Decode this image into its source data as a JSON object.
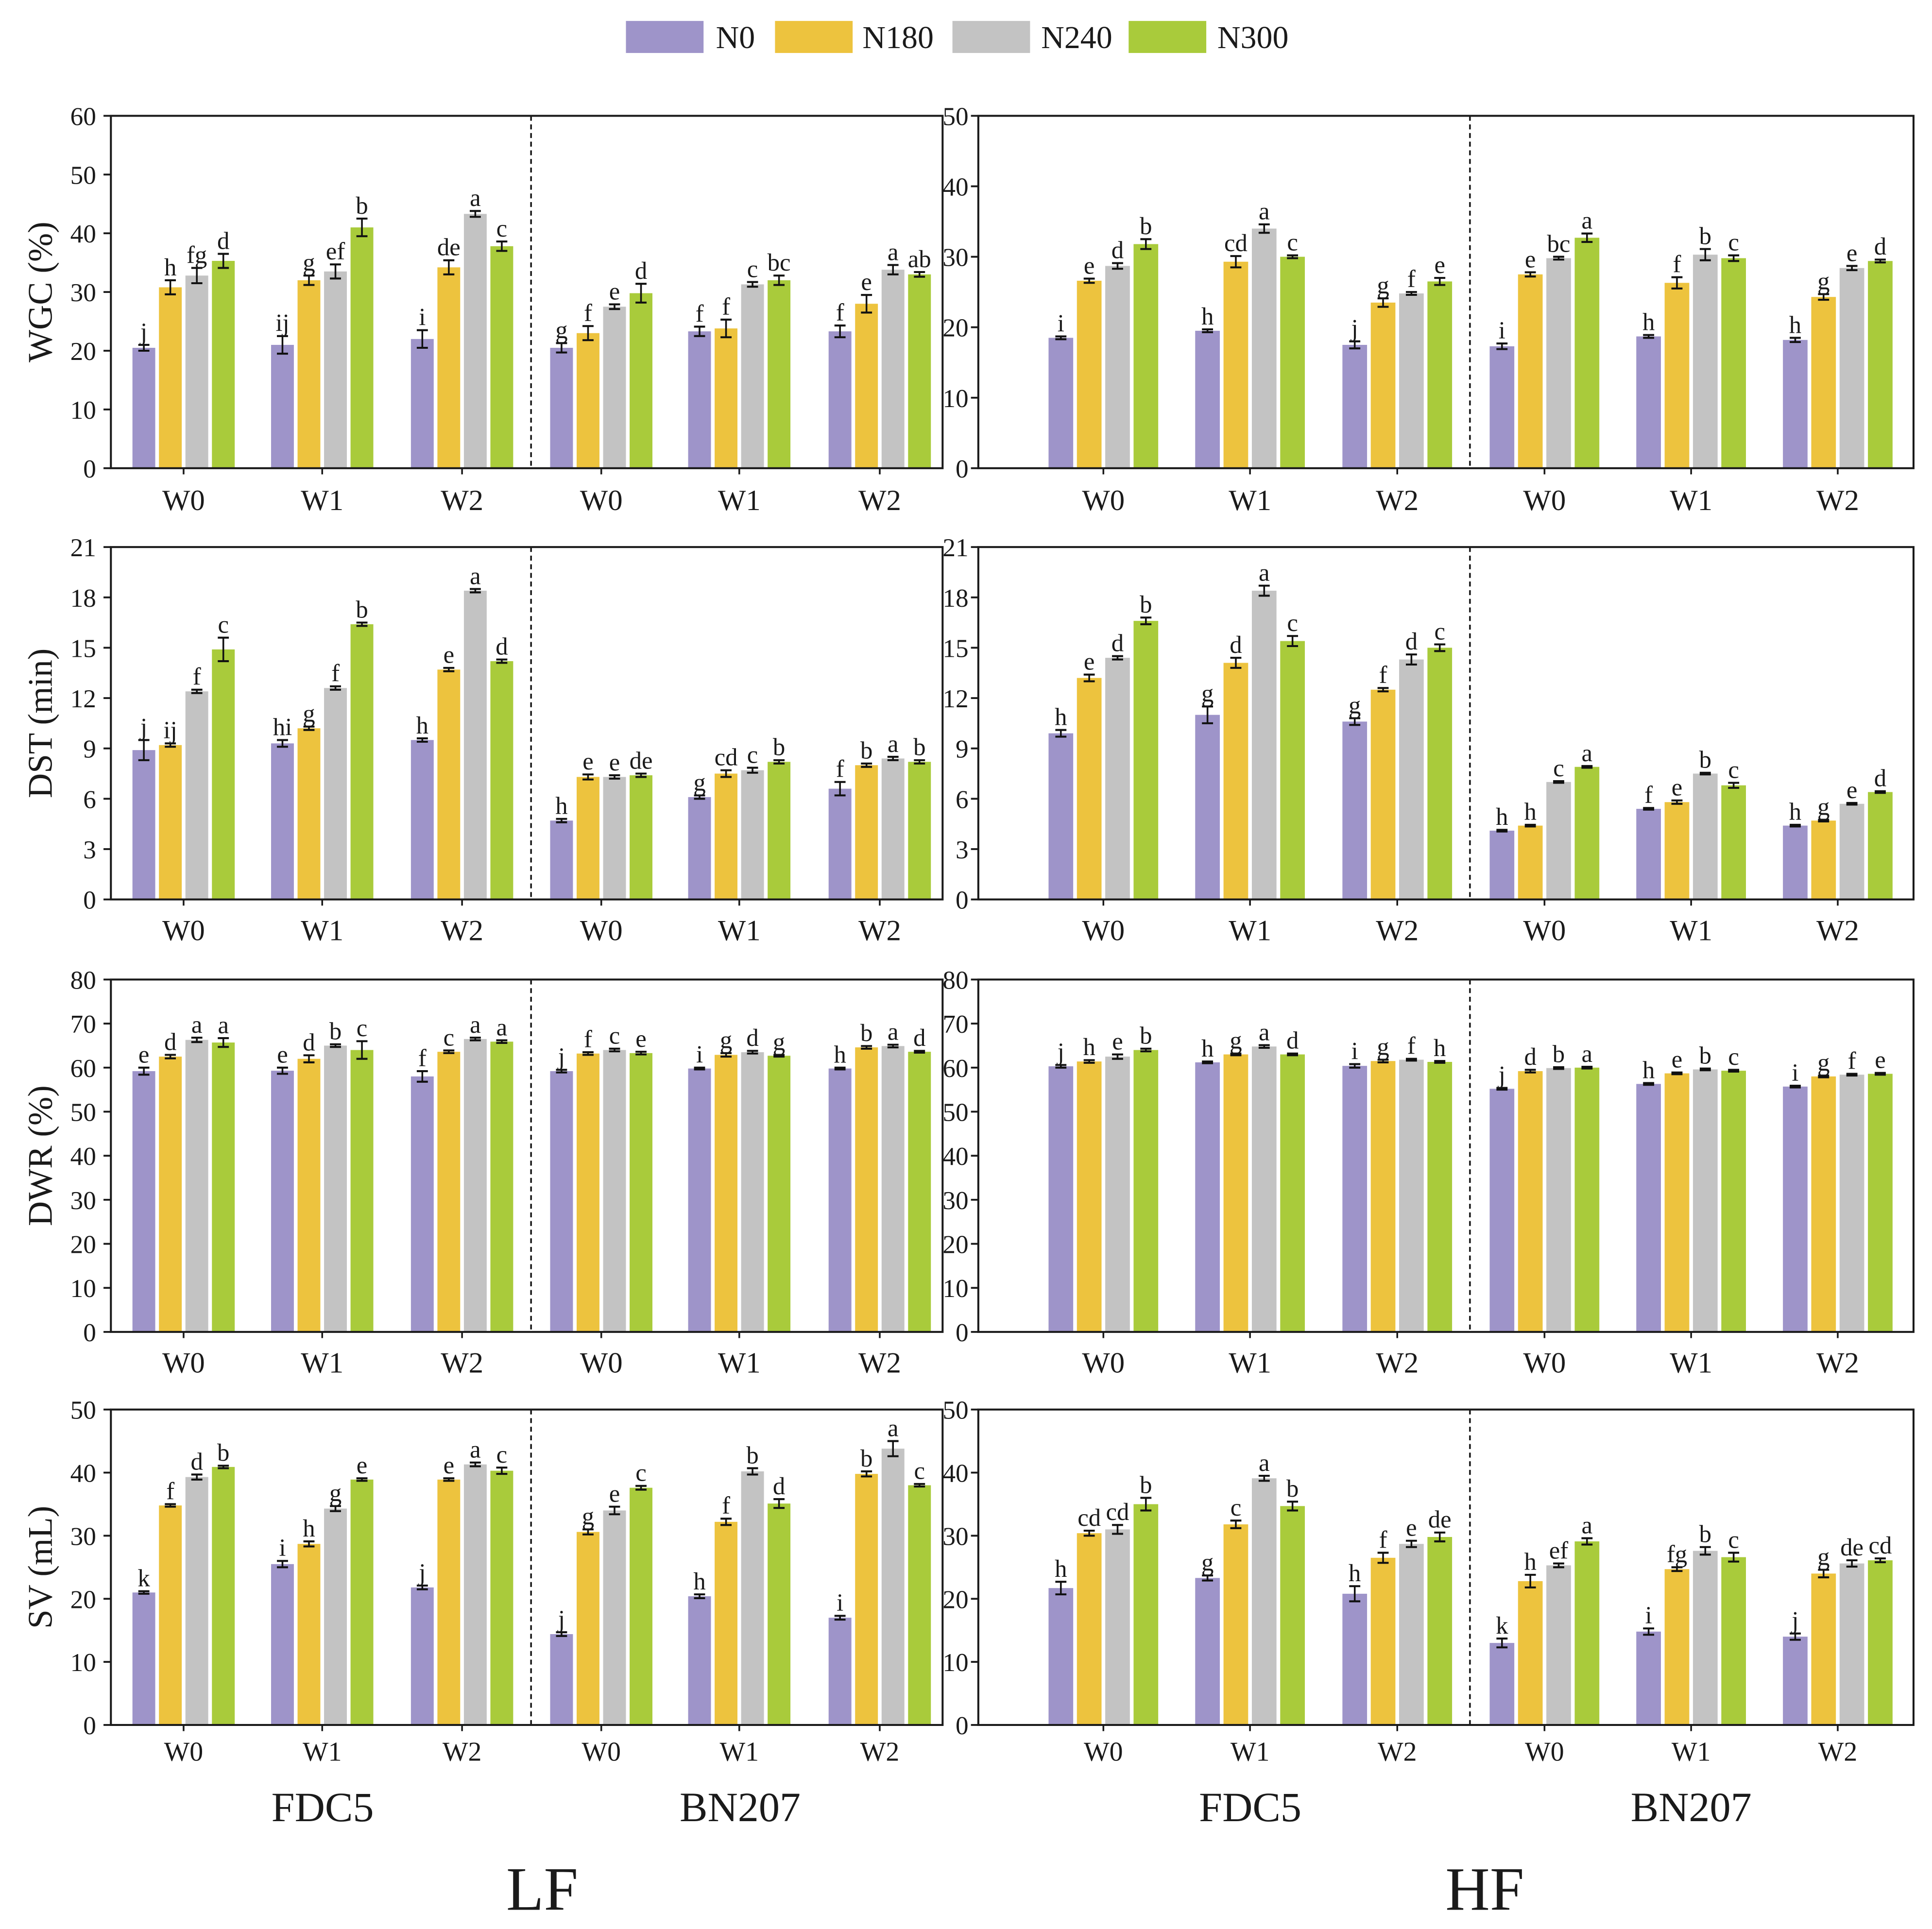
{
  "legend": [
    {
      "label": "N0",
      "color": "#9e94c9"
    },
    {
      "label": "N180",
      "color": "#edc33e"
    },
    {
      "label": "N240",
      "color": "#c3c3c3"
    },
    {
      "label": "N300",
      "color": "#a9cb3b"
    }
  ],
  "cultivars": [
    "FDC5",
    "BN207"
  ],
  "conditions": [
    "LF",
    "HF"
  ],
  "chart_data": [
    {
      "type": "bar",
      "ylabel": "WGC (%)",
      "ylim": [
        0,
        60
      ],
      "yticks": [
        0,
        10,
        20,
        30,
        40,
        50,
        60
      ],
      "categories": [
        "W0",
        "W1",
        "W2",
        "W0",
        "W1",
        "W2"
      ],
      "series": [
        {
          "name": "N0",
          "values": [
            20.5,
            21.0,
            22.0,
            20.5,
            23.3,
            23.3
          ],
          "errors": [
            0.5,
            1.5,
            1.5,
            0.8,
            0.8,
            1.0
          ],
          "letters": [
            "j",
            "ij",
            "i",
            "g",
            "f",
            "f"
          ]
        },
        {
          "name": "N180",
          "values": [
            30.8,
            32.0,
            34.2,
            23.0,
            23.8,
            28.0
          ],
          "errors": [
            1.2,
            0.8,
            1.2,
            1.2,
            1.5,
            1.5
          ],
          "letters": [
            "h",
            "g",
            "de",
            "f",
            "f",
            "e"
          ]
        },
        {
          "name": "N240",
          "values": [
            32.8,
            33.5,
            43.3,
            27.5,
            31.3,
            33.8
          ],
          "errors": [
            1.3,
            1.2,
            0.5,
            0.4,
            0.4,
            0.8
          ],
          "letters": [
            "fg",
            "ef",
            "a",
            "e",
            "c",
            "a"
          ]
        },
        {
          "name": "N300",
          "values": [
            35.3,
            41.0,
            37.8,
            29.8,
            32.0,
            33.0
          ],
          "errors": [
            1.2,
            1.5,
            0.8,
            1.6,
            0.8,
            0.4
          ],
          "letters": [
            "d",
            "b",
            "c",
            "d",
            "bc",
            "ab"
          ]
        }
      ]
    },
    {
      "type": "bar",
      "ylabel": "",
      "ylim": [
        0,
        50
      ],
      "yticks": [
        0,
        10,
        20,
        30,
        40,
        50
      ],
      "categories": [
        "W0",
        "W1",
        "W2",
        "W0",
        "W1",
        "W2"
      ],
      "series": [
        {
          "name": "N0",
          "values": [
            18.5,
            19.5,
            17.5,
            17.3,
            18.7,
            18.2
          ],
          "errors": [
            0.2,
            0.2,
            0.5,
            0.4,
            0.2,
            0.3
          ],
          "letters": [
            "i",
            "h",
            "j",
            "i",
            "h",
            "h"
          ]
        },
        {
          "name": "N180",
          "values": [
            26.6,
            29.3,
            23.5,
            27.5,
            26.3,
            24.3
          ],
          "errors": [
            0.3,
            0.8,
            0.6,
            0.3,
            0.8,
            0.4
          ],
          "letters": [
            "e",
            "cd",
            "g",
            "e",
            "f",
            "g"
          ]
        },
        {
          "name": "N240",
          "values": [
            28.7,
            34.0,
            24.8,
            29.8,
            30.3,
            28.4
          ],
          "errors": [
            0.4,
            0.6,
            0.2,
            0.2,
            0.8,
            0.3
          ],
          "letters": [
            "d",
            "a",
            "f",
            "bc",
            "b",
            "e"
          ]
        },
        {
          "name": "N300",
          "values": [
            31.8,
            30.0,
            26.5,
            32.7,
            29.8,
            29.4
          ],
          "errors": [
            0.7,
            0.2,
            0.5,
            0.6,
            0.4,
            0.2
          ],
          "letters": [
            "b",
            "c",
            "e",
            "a",
            "c",
            "d"
          ]
        }
      ]
    },
    {
      "type": "bar",
      "ylabel": "DST (min)",
      "ylim": [
        0,
        21
      ],
      "yticks": [
        0,
        3,
        6,
        9,
        12,
        15,
        18,
        21
      ],
      "categories": [
        "W0",
        "W1",
        "W2",
        "W0",
        "W1",
        "W2"
      ],
      "series": [
        {
          "name": "N0",
          "values": [
            8.9,
            9.3,
            9.5,
            4.7,
            6.1,
            6.6
          ],
          "errors": [
            0.6,
            0.2,
            0.1,
            0.1,
            0.1,
            0.4
          ],
          "letters": [
            "j",
            "hi",
            "h",
            "h",
            "g",
            "f"
          ]
        },
        {
          "name": "N180",
          "values": [
            9.2,
            10.2,
            13.7,
            7.3,
            7.5,
            8.0
          ],
          "errors": [
            0.1,
            0.1,
            0.1,
            0.15,
            0.2,
            0.1
          ],
          "letters": [
            "ij",
            "g",
            "e",
            "e",
            "cd",
            "b"
          ]
        },
        {
          "name": "N240",
          "values": [
            12.4,
            12.6,
            18.4,
            7.3,
            7.7,
            8.4
          ],
          "errors": [
            0.1,
            0.1,
            0.1,
            0.1,
            0.15,
            0.1
          ],
          "letters": [
            "f",
            "f",
            "a",
            "e",
            "c",
            "a"
          ]
        },
        {
          "name": "N300",
          "values": [
            14.9,
            16.4,
            14.2,
            7.4,
            8.2,
            8.2
          ],
          "errors": [
            0.7,
            0.1,
            0.1,
            0.1,
            0.1,
            0.1
          ],
          "letters": [
            "c",
            "b",
            "d",
            "de",
            "b",
            "b"
          ]
        }
      ]
    },
    {
      "type": "bar",
      "ylabel": "",
      "ylim": [
        0,
        21
      ],
      "yticks": [
        0,
        3,
        6,
        9,
        12,
        15,
        18,
        21
      ],
      "categories": [
        "W0",
        "W1",
        "W2",
        "W0",
        "W1",
        "W2"
      ],
      "series": [
        {
          "name": "N0",
          "values": [
            9.9,
            11.0,
            10.6,
            4.1,
            5.4,
            4.4
          ],
          "errors": [
            0.2,
            0.5,
            0.2,
            0.05,
            0.05,
            0.05
          ],
          "letters": [
            "h",
            "g",
            "g",
            "h",
            "f",
            "h"
          ]
        },
        {
          "name": "N180",
          "values": [
            13.2,
            14.1,
            12.5,
            4.4,
            5.8,
            4.7
          ],
          "errors": [
            0.2,
            0.3,
            0.1,
            0.05,
            0.1,
            0.05
          ],
          "letters": [
            "e",
            "d",
            "f",
            "h",
            "e",
            "g"
          ]
        },
        {
          "name": "N240",
          "values": [
            14.4,
            18.4,
            14.3,
            7.0,
            7.5,
            5.7
          ],
          "errors": [
            0.1,
            0.3,
            0.3,
            0.05,
            0.05,
            0.05
          ],
          "letters": [
            "d",
            "a",
            "d",
            "c",
            "b",
            "e"
          ]
        },
        {
          "name": "N300",
          "values": [
            16.6,
            15.4,
            15.0,
            7.9,
            6.8,
            6.4
          ],
          "errors": [
            0.2,
            0.3,
            0.2,
            0.05,
            0.15,
            0.05
          ],
          "letters": [
            "b",
            "c",
            "c",
            "a",
            "c",
            "d"
          ]
        }
      ]
    },
    {
      "type": "bar",
      "ylabel": "DWR (%)",
      "ylim": [
        0,
        80
      ],
      "yticks": [
        0,
        10,
        20,
        30,
        40,
        50,
        60,
        70,
        80
      ],
      "categories": [
        "W0",
        "W1",
        "W2",
        "W0",
        "W1",
        "W2"
      ],
      "series": [
        {
          "name": "N0",
          "values": [
            59.2,
            59.3,
            58.0,
            59.2,
            59.8,
            59.8
          ],
          "errors": [
            0.8,
            0.7,
            1.2,
            0.3,
            0.2,
            0.2
          ],
          "letters": [
            "e",
            "e",
            "f",
            "j",
            "i",
            "h"
          ]
        },
        {
          "name": "N180",
          "values": [
            62.5,
            62.0,
            63.6,
            63.2,
            62.9,
            64.6
          ],
          "errors": [
            0.4,
            0.8,
            0.3,
            0.3,
            0.4,
            0.3
          ],
          "letters": [
            "d",
            "d",
            "c",
            "f",
            "g",
            "b"
          ]
        },
        {
          "name": "N240",
          "values": [
            66.3,
            65.0,
            66.5,
            64.0,
            63.5,
            64.9
          ],
          "errors": [
            0.5,
            0.3,
            0.3,
            0.3,
            0.3,
            0.3
          ],
          "letters": [
            "a",
            "b",
            "a",
            "c",
            "d",
            "a"
          ]
        },
        {
          "name": "N300",
          "values": [
            65.7,
            64.0,
            65.9,
            63.3,
            62.7,
            63.6
          ],
          "errors": [
            1.0,
            2.0,
            0.3,
            0.3,
            0.2,
            0.2
          ],
          "letters": [
            "a",
            "c",
            "a",
            "e",
            "g",
            "d"
          ]
        }
      ]
    },
    {
      "type": "bar",
      "ylabel": "",
      "ylim": [
        0,
        80
      ],
      "yticks": [
        0,
        10,
        20,
        30,
        40,
        50,
        60,
        70,
        80
      ],
      "categories": [
        "W0",
        "W1",
        "W2",
        "W0",
        "W1",
        "W2"
      ],
      "series": [
        {
          "name": "N0",
          "values": [
            60.3,
            61.2,
            60.4,
            55.2,
            56.3,
            55.7
          ],
          "errors": [
            0.3,
            0.2,
            0.4,
            0.2,
            0.2,
            0.2
          ],
          "letters": [
            "j",
            "h",
            "i",
            "j",
            "h",
            "i"
          ]
        },
        {
          "name": "N180",
          "values": [
            61.4,
            63.0,
            61.5,
            59.2,
            58.7,
            58.0
          ],
          "errors": [
            0.3,
            0.2,
            0.3,
            0.3,
            0.2,
            0.2
          ],
          "letters": [
            "h",
            "g",
            "g",
            "d",
            "e",
            "g"
          ]
        },
        {
          "name": "N240",
          "values": [
            62.5,
            64.8,
            61.8,
            59.9,
            59.6,
            58.4
          ],
          "errors": [
            0.5,
            0.3,
            0.2,
            0.2,
            0.2,
            0.2
          ],
          "letters": [
            "e",
            "a",
            "f",
            "b",
            "b",
            "f"
          ]
        },
        {
          "name": "N300",
          "values": [
            64.0,
            63.0,
            61.3,
            60.0,
            59.3,
            58.6
          ],
          "errors": [
            0.3,
            0.2,
            0.2,
            0.2,
            0.2,
            0.2
          ],
          "letters": [
            "b",
            "d",
            "h",
            "a",
            "c",
            "e"
          ]
        }
      ]
    },
    {
      "type": "bar",
      "ylabel": "SV (mL)",
      "ylim": [
        0,
        50
      ],
      "yticks": [
        0,
        10,
        20,
        30,
        40,
        50
      ],
      "categories": [
        "W0",
        "W1",
        "W2",
        "W0",
        "W1",
        "W2"
      ],
      "series": [
        {
          "name": "N0",
          "values": [
            21.0,
            25.5,
            21.8,
            14.4,
            20.4,
            17.0
          ],
          "errors": [
            0.2,
            0.5,
            0.3,
            0.3,
            0.3,
            0.3
          ],
          "letters": [
            "k",
            "i",
            "j",
            "j",
            "h",
            "i"
          ]
        },
        {
          "name": "N180",
          "values": [
            34.8,
            28.7,
            38.9,
            30.6,
            32.2,
            39.8
          ],
          "errors": [
            0.2,
            0.4,
            0.2,
            0.4,
            0.5,
            0.4
          ],
          "letters": [
            "f",
            "h",
            "e",
            "g",
            "f",
            "b"
          ]
        },
        {
          "name": "N240",
          "values": [
            39.3,
            34.3,
            41.3,
            34.0,
            40.2,
            43.8
          ],
          "errors": [
            0.4,
            0.4,
            0.3,
            0.6,
            0.5,
            1.2
          ],
          "letters": [
            "d",
            "g",
            "a",
            "e",
            "b",
            "a"
          ]
        },
        {
          "name": "N300",
          "values": [
            40.9,
            38.9,
            40.3,
            37.6,
            35.1,
            38.0
          ],
          "errors": [
            0.2,
            0.2,
            0.5,
            0.3,
            0.7,
            0.2
          ],
          "letters": [
            "b",
            "e",
            "c",
            "c",
            "d",
            "c"
          ]
        }
      ]
    },
    {
      "type": "bar",
      "ylabel": "",
      "ylim": [
        0,
        50
      ],
      "yticks": [
        0,
        10,
        20,
        30,
        40,
        50
      ],
      "categories": [
        "W0",
        "W1",
        "W2",
        "W0",
        "W1",
        "W2"
      ],
      "series": [
        {
          "name": "N0",
          "values": [
            21.7,
            23.3,
            20.8,
            13.0,
            14.8,
            14.0
          ],
          "errors": [
            1.0,
            0.4,
            1.2,
            0.7,
            0.5,
            0.5
          ],
          "letters": [
            "h",
            "g",
            "h",
            "k",
            "i",
            "j"
          ]
        },
        {
          "name": "N180",
          "values": [
            30.4,
            31.8,
            26.5,
            22.8,
            24.7,
            24.0
          ],
          "errors": [
            0.4,
            0.6,
            0.8,
            1.0,
            0.3,
            0.6
          ],
          "letters": [
            "cd",
            "c",
            "f",
            "h",
            "fg",
            "g"
          ]
        },
        {
          "name": "N240",
          "values": [
            31.0,
            39.1,
            28.7,
            25.3,
            27.6,
            25.6
          ],
          "errors": [
            0.7,
            0.4,
            0.5,
            0.3,
            0.6,
            0.5
          ],
          "letters": [
            "cd",
            "a",
            "e",
            "ef",
            "b",
            "de"
          ]
        },
        {
          "name": "N300",
          "values": [
            35.0,
            34.7,
            29.8,
            29.1,
            26.6,
            26.1
          ],
          "errors": [
            1.0,
            0.7,
            0.7,
            0.5,
            0.7,
            0.3
          ],
          "letters": [
            "b",
            "b",
            "de",
            "a",
            "c",
            "cd"
          ]
        }
      ]
    }
  ]
}
